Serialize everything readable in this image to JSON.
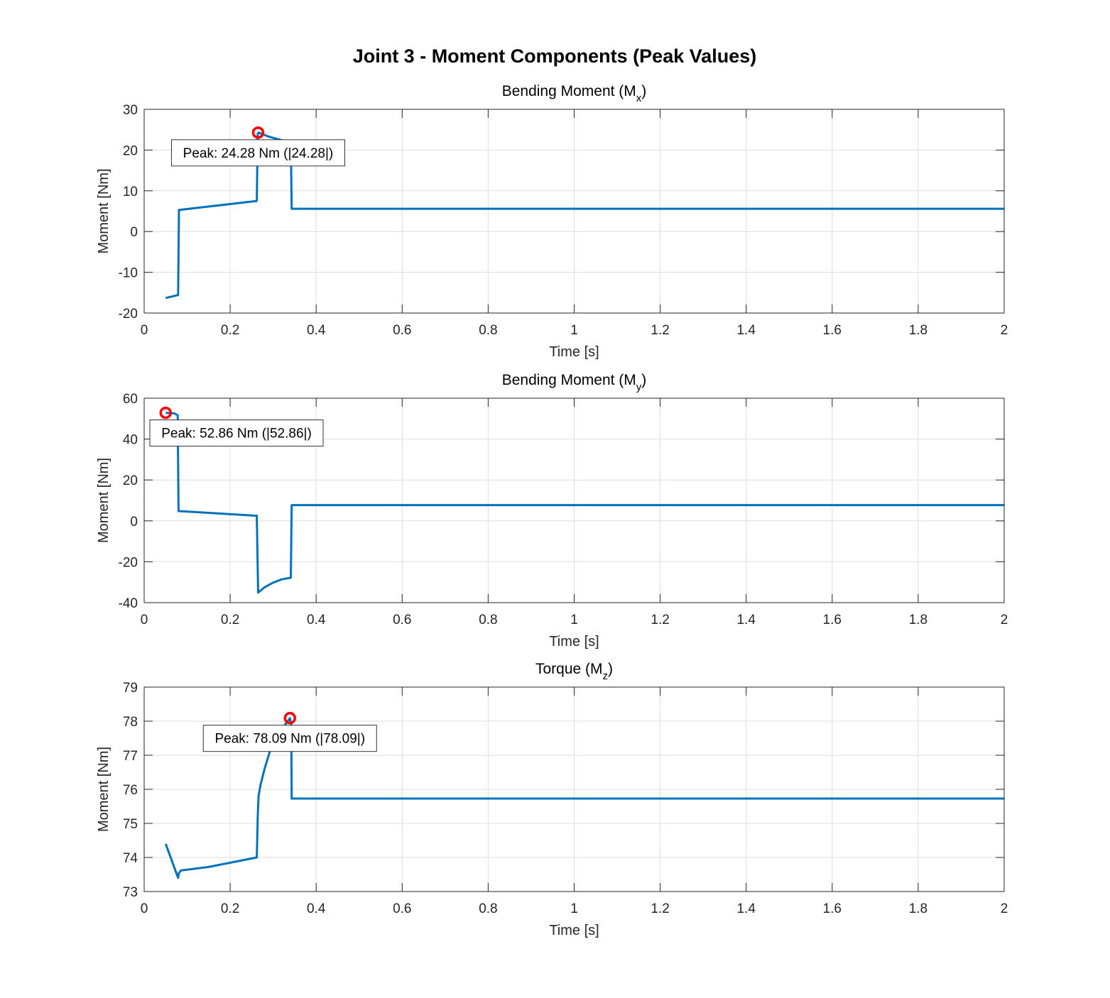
{
  "chart_data": {
    "title": "Joint 3 - Moment Components (Peak Values)",
    "subplots": [
      {
        "type": "line",
        "title": "Bending Moment (M",
        "title_sub": "x",
        "title_end": ")",
        "xlabel": "Time [s]",
        "ylabel": "Moment [Nm]",
        "xlim": [
          0,
          2
        ],
        "ylim": [
          -20,
          30
        ],
        "xticks": [
          0,
          0.2,
          0.4,
          0.6,
          0.8,
          1,
          1.2,
          1.4,
          1.6,
          1.8,
          2
        ],
        "yticks": [
          -20,
          -10,
          0,
          10,
          20,
          30
        ],
        "grid": true,
        "color": "#0072BD",
        "x": [
          0.05,
          0.079,
          0.081,
          0.262,
          0.264,
          0.266,
          0.287,
          0.3,
          0.32,
          0.341,
          0.343,
          2
        ],
        "y": [
          -16.3,
          -15.6,
          5.3,
          7.5,
          24.0,
          24.28,
          23.4,
          23.0,
          22.4,
          22.0,
          5.6,
          5.6
        ],
        "peak": {
          "x": 0.265,
          "y": 24.28,
          "label": "Peak: 24.28 Nm (|24.28|)"
        }
      },
      {
        "type": "line",
        "title": "Bending Moment (M",
        "title_sub": "y",
        "title_end": ")",
        "xlabel": "Time [s]",
        "ylabel": "Moment [Nm]",
        "xlim": [
          0,
          2
        ],
        "ylim": [
          -40,
          60
        ],
        "xticks": [
          0,
          0.2,
          0.4,
          0.6,
          0.8,
          1,
          1.2,
          1.4,
          1.6,
          1.8,
          2
        ],
        "yticks": [
          -40,
          -20,
          0,
          20,
          40,
          60
        ],
        "grid": true,
        "color": "#0072BD",
        "x": [
          0.05,
          0.07,
          0.078,
          0.08,
          0.262,
          0.265,
          0.28,
          0.3,
          0.32,
          0.341,
          0.343,
          2
        ],
        "y": [
          52.86,
          52.6,
          51.7,
          4.8,
          2.5,
          -35.1,
          -32.5,
          -30.2,
          -28.6,
          -27.8,
          7.7,
          7.7
        ],
        "peak": {
          "x": 0.05,
          "y": 52.86,
          "label": "Peak: 52.86 Nm (|52.86|)"
        }
      },
      {
        "type": "line",
        "title": "Torque (M",
        "title_sub": "z",
        "title_end": ")",
        "xlabel": "Time [s]",
        "ylabel": "Moment [Nm]",
        "xlim": [
          0,
          2
        ],
        "ylim": [
          73,
          79
        ],
        "xticks": [
          0,
          0.2,
          0.4,
          0.6,
          0.8,
          1,
          1.2,
          1.4,
          1.6,
          1.8,
          2
        ],
        "yticks": [
          73,
          74,
          75,
          76,
          77,
          78,
          79
        ],
        "grid": true,
        "color": "#0072BD",
        "x": [
          0.05,
          0.079,
          0.081,
          0.086,
          0.15,
          0.262,
          0.264,
          0.266,
          0.27,
          0.28,
          0.292,
          0.31,
          0.334,
          0.339,
          0.342,
          0.343,
          2
        ],
        "y": [
          74.4,
          73.4,
          73.55,
          73.62,
          73.72,
          74.0,
          75.2,
          75.8,
          76.1,
          76.6,
          77.1,
          77.6,
          78.0,
          78.09,
          77.9,
          75.73,
          75.73
        ],
        "peak": {
          "x": 0.339,
          "y": 78.09,
          "label": "Peak: 78.09 Nm (|78.09|)"
        }
      }
    ]
  }
}
